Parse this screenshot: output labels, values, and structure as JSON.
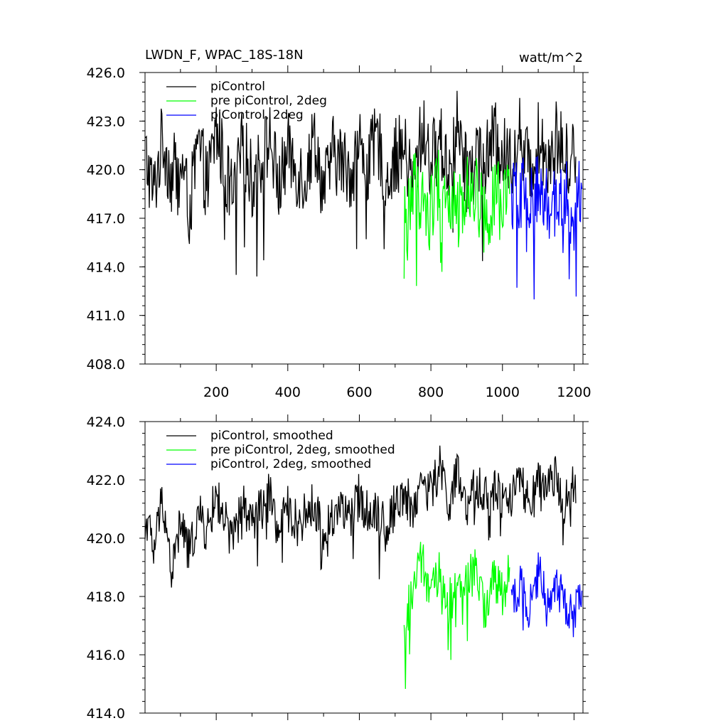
{
  "chart_data": [
    {
      "type": "line",
      "title": "LWDN_F, WPAC_18S-18N",
      "units": "watt/m^2",
      "xlim": [
        1,
        1225
      ],
      "ylim": [
        408,
        426
      ],
      "xticks": [
        200,
        400,
        600,
        800,
        1000,
        1200
      ],
      "xtick_labels": [
        "200",
        "400",
        "600",
        "800",
        "1000",
        "1200"
      ],
      "yticks": [
        408,
        411,
        414,
        417,
        420,
        423,
        426
      ],
      "ytick_labels": [
        "408.0",
        "411.0",
        "414.0",
        "417.0",
        "420.0",
        "423.0",
        "426.0"
      ],
      "legend_position": "top-left",
      "grid": false,
      "series": [
        {
          "name": "piControl",
          "color": "#000000",
          "x": [
            1,
            25,
            50,
            75,
            100,
            125,
            150,
            175,
            200,
            225,
            250,
            275,
            300,
            325,
            350,
            375,
            400,
            425,
            450,
            475,
            500,
            525,
            550,
            575,
            600,
            625,
            650,
            675,
            700,
            725,
            750,
            775,
            800,
            825,
            850,
            875,
            900,
            925,
            950,
            975,
            1000,
            1025,
            1050,
            1075,
            1100,
            1125,
            1150,
            1175,
            1200,
            1205
          ],
          "values": [
            421.0,
            418.5,
            422.0,
            419.5,
            420.8,
            417.5,
            421.5,
            419.0,
            422.5,
            420.0,
            418.0,
            421.8,
            419.2,
            420.5,
            422.0,
            418.8,
            421.2,
            420.0,
            419.5,
            422.2,
            418.5,
            421.0,
            420.5,
            419.8,
            421.5,
            420.2,
            422.0,
            419.5,
            420.8,
            421.2,
            419.0,
            422.5,
            420.5,
            421.8,
            420.0,
            422.8,
            419.5,
            421.5,
            420.2,
            422.0,
            421.0,
            420.5,
            422.5,
            419.8,
            421.8,
            420.8,
            422.2,
            420.5,
            421.5,
            420.8
          ]
        },
        {
          "name": "pre piControl, 2deg",
          "color": "#00ff00",
          "x": [
            725,
            750,
            775,
            800,
            825,
            850,
            875,
            900,
            925,
            950,
            975,
            1000,
            1020
          ],
          "values": [
            416.5,
            419.0,
            418.2,
            417.5,
            419.5,
            418.0,
            417.2,
            418.8,
            419.0,
            416.8,
            418.5,
            417.8,
            418.5
          ]
        },
        {
          "name": "piControl, 2deg",
          "color": "#0000ff",
          "x": [
            1025,
            1050,
            1075,
            1100,
            1125,
            1150,
            1175,
            1200,
            1222
          ],
          "values": [
            418.0,
            418.8,
            417.5,
            419.0,
            418.2,
            417.8,
            418.5,
            417.2,
            418.8
          ]
        }
      ]
    },
    {
      "type": "line",
      "xlim": [
        1,
        1225
      ],
      "ylim": [
        414,
        424
      ],
      "yticks": [
        414,
        416,
        418,
        420,
        422,
        424
      ],
      "ytick_labels": [
        "414.0",
        "416.0",
        "418.0",
        "420.0",
        "422.0",
        "424.0"
      ],
      "legend_position": "top-left",
      "grid": false,
      "series": [
        {
          "name": "piControl, smoothed",
          "color": "#000000",
          "x": [
            1,
            25,
            50,
            75,
            100,
            125,
            150,
            175,
            200,
            225,
            250,
            275,
            300,
            325,
            350,
            375,
            400,
            425,
            450,
            475,
            500,
            525,
            550,
            575,
            600,
            625,
            650,
            675,
            700,
            725,
            750,
            775,
            800,
            825,
            850,
            875,
            900,
            925,
            950,
            975,
            1000,
            1025,
            1050,
            1075,
            1100,
            1125,
            1150,
            1175,
            1200,
            1205
          ],
          "values": [
            421.0,
            419.5,
            421.5,
            418.8,
            420.5,
            419.5,
            420.8,
            420.2,
            421.5,
            420.5,
            420.0,
            421.2,
            420.5,
            421.0,
            421.5,
            420.2,
            421.0,
            420.5,
            420.8,
            421.2,
            420.0,
            420.8,
            421.2,
            420.5,
            421.5,
            420.8,
            421.0,
            420.2,
            421.2,
            421.5,
            421.0,
            422.0,
            421.5,
            422.5,
            421.2,
            422.2,
            420.8,
            421.8,
            421.5,
            422.0,
            421.2,
            421.5,
            422.0,
            421.0,
            421.8,
            421.5,
            422.2,
            421.2,
            421.8,
            421.2
          ]
        },
        {
          "name": "pre piControl, 2deg, smoothed",
          "color": "#00ff00",
          "x": [
            725,
            750,
            775,
            800,
            825,
            850,
            875,
            900,
            925,
            950,
            975,
            1000,
            1020
          ],
          "values": [
            416.6,
            418.5,
            419.2,
            418.0,
            418.8,
            417.8,
            418.2,
            418.5,
            418.9,
            417.5,
            418.6,
            418.0,
            419.0
          ]
        },
        {
          "name": "piControl, 2deg, smoothed",
          "color": "#0000ff",
          "x": [
            1025,
            1050,
            1075,
            1100,
            1125,
            1150,
            1175,
            1200,
            1222
          ],
          "values": [
            417.8,
            418.5,
            417.6,
            418.8,
            418.0,
            418.5,
            417.8,
            417.2,
            418.2
          ]
        }
      ]
    }
  ]
}
